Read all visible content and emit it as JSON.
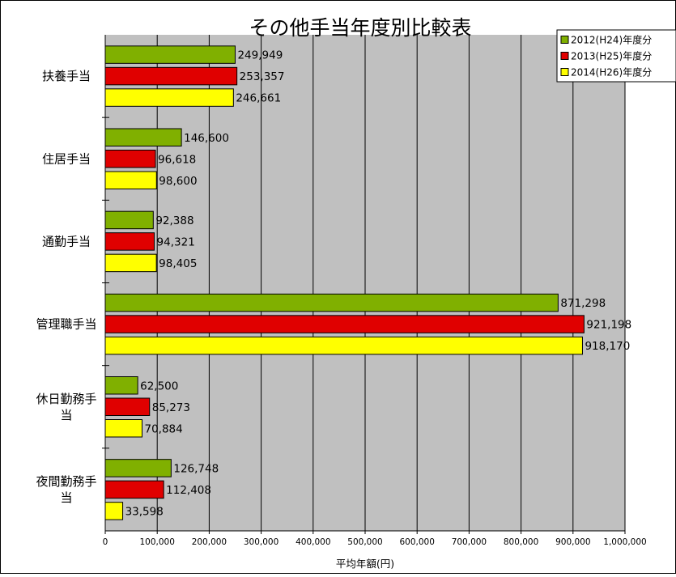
{
  "chart_data": {
    "type": "bar",
    "orientation": "horizontal",
    "title": "その他手当年度別比較表",
    "xlabel": "平均年額(円)",
    "ylabel": "",
    "xlim": [
      0,
      1000000
    ],
    "grid": true,
    "legend_position": "top-right",
    "categories": [
      [
        "扶養手当"
      ],
      [
        "住居手当"
      ],
      [
        "通勤手当"
      ],
      [
        "管理職手当"
      ],
      [
        "休日勤務手",
        "当"
      ],
      [
        "夜間勤務手",
        "当"
      ]
    ],
    "x_ticks": [
      "0",
      "100,000",
      "200,000",
      "300,000",
      "400,000",
      "500,000",
      "600,000",
      "700,000",
      "800,000",
      "900,000",
      "1,000,000"
    ],
    "series": [
      {
        "name": "2012(H24)年度分",
        "color": "#80b000",
        "values": [
          249949,
          146600,
          92388,
          871298,
          62500,
          126748
        ],
        "labels": [
          "249,949",
          "146,600",
          "92,388",
          "871,298",
          "62,500",
          "126,748"
        ]
      },
      {
        "name": "2013(H25)年度分",
        "color": "#e00000",
        "values": [
          253357,
          96618,
          94321,
          921198,
          85273,
          112408
        ],
        "labels": [
          "253,357",
          "96,618",
          "94,321",
          "921,198",
          "85,273",
          "112,408"
        ]
      },
      {
        "name": "2014(H26)年度分",
        "color": "#ffff00",
        "values": [
          246661,
          98600,
          98405,
          918170,
          70884,
          33598
        ],
        "labels": [
          "246,661",
          "98,600",
          "98,405",
          "918,170",
          "70,884",
          "33,598"
        ]
      }
    ]
  }
}
